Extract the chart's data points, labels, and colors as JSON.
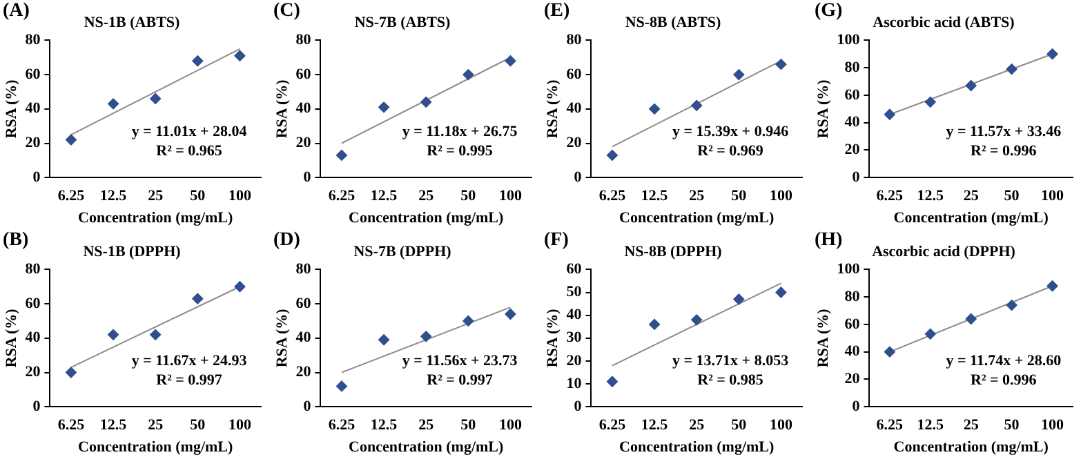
{
  "chart_data": [
    {
      "type": "scatter",
      "title": "NS-1B (ABTS)",
      "xlabel": "Concentration (mg/mL)",
      "ylabel": "RSA (%)",
      "categories": [
        "6.25",
        "12.5",
        "25",
        "50",
        "100"
      ],
      "ylim": [
        0,
        80
      ],
      "yticks": [
        0,
        20,
        40,
        60,
        80
      ],
      "annotations": [
        "(A)",
        "y = 11.01x + 28.04",
        "R² = 0.965"
      ],
      "series": [
        {
          "type": "scatter",
          "marker": "diamond",
          "color": "#2f4f8f",
          "values": [
            22,
            43,
            46,
            68,
            71
          ]
        },
        {
          "type": "line",
          "marker": "none",
          "color": "#8c8c8c",
          "x": [
            "6.25",
            "100"
          ],
          "values": [
            25,
            75
          ]
        }
      ]
    },
    {
      "type": "scatter",
      "title": "NS-7B (ABTS)",
      "xlabel": "Concentration (mg/mL)",
      "ylabel": "RSA (%)",
      "categories": [
        "6.25",
        "12.5",
        "25",
        "50",
        "100"
      ],
      "ylim": [
        0,
        80
      ],
      "yticks": [
        0,
        20,
        40,
        60,
        80
      ],
      "annotations": [
        "(C)",
        "y = 11.18x + 26.75",
        "R² = 0.995"
      ],
      "series": [
        {
          "type": "scatter",
          "marker": "diamond",
          "color": "#2f4f8f",
          "values": [
            13,
            41,
            44,
            60,
            68
          ]
        },
        {
          "type": "line",
          "marker": "none",
          "color": "#8c8c8c",
          "x": [
            "6.25",
            "100"
          ],
          "values": [
            20,
            70
          ]
        }
      ]
    },
    {
      "type": "scatter",
      "title": "NS-8B (ABTS)",
      "xlabel": "Concentration (mg/mL)",
      "ylabel": "RSA (%)",
      "categories": [
        "6.25",
        "12.5",
        "25",
        "50",
        "100"
      ],
      "ylim": [
        0,
        80
      ],
      "yticks": [
        0,
        20,
        40,
        60,
        80
      ],
      "annotations": [
        "(E)",
        "y = 15.39x + 0.946",
        "R² = 0.969"
      ],
      "series": [
        {
          "type": "scatter",
          "marker": "diamond",
          "color": "#2f4f8f",
          "values": [
            13,
            40,
            42,
            60,
            66
          ]
        },
        {
          "type": "line",
          "marker": "none",
          "color": "#8c8c8c",
          "x": [
            "6.25",
            "100"
          ],
          "values": [
            18,
            68
          ]
        }
      ]
    },
    {
      "type": "scatter",
      "title": "Ascorbic acid (ABTS)",
      "xlabel": "Concentration (mg/mL)",
      "ylabel": "RSA (%)",
      "categories": [
        "6.25",
        "12.5",
        "25",
        "50",
        "100"
      ],
      "ylim": [
        0,
        100
      ],
      "yticks": [
        0,
        20,
        40,
        60,
        80,
        100
      ],
      "annotations": [
        "(G)",
        "y = 11.57x + 33.46",
        "R² = 0.996"
      ],
      "series": [
        {
          "type": "scatter",
          "marker": "diamond",
          "color": "#2f4f8f",
          "values": [
            46,
            55,
            67,
            79,
            90
          ]
        },
        {
          "type": "line",
          "marker": "none",
          "color": "#8c8c8c",
          "x": [
            "6.25",
            "100"
          ],
          "values": [
            46,
            90
          ]
        }
      ]
    },
    {
      "type": "scatter",
      "title": "NS-1B (DPPH)",
      "xlabel": "Concentration (mg/mL)",
      "ylabel": "RSA (%)",
      "categories": [
        "6.25",
        "12.5",
        "25",
        "50",
        "100"
      ],
      "ylim": [
        0,
        80
      ],
      "yticks": [
        0,
        20,
        40,
        60,
        80
      ],
      "annotations": [
        "(B)",
        "y = 11.67x + 24.93",
        "R² = 0.997"
      ],
      "series": [
        {
          "type": "scatter",
          "marker": "diamond",
          "color": "#2f4f8f",
          "values": [
            20,
            42,
            42,
            63,
            70
          ]
        },
        {
          "type": "line",
          "marker": "none",
          "color": "#8c8c8c",
          "x": [
            "6.25",
            "100"
          ],
          "values": [
            23,
            70
          ]
        }
      ]
    },
    {
      "type": "scatter",
      "title": "NS-7B (DPPH)",
      "xlabel": "Concentration (mg/mL)",
      "ylabel": "RSA (%)",
      "categories": [
        "6.25",
        "12.5",
        "25",
        "50",
        "100"
      ],
      "ylim": [
        0,
        80
      ],
      "yticks": [
        0,
        20,
        40,
        60,
        80
      ],
      "annotations": [
        "(D)",
        "y = 11.56x + 23.73",
        "R² = 0.997"
      ],
      "series": [
        {
          "type": "scatter",
          "marker": "diamond",
          "color": "#2f4f8f",
          "values": [
            12,
            39,
            41,
            50,
            54
          ]
        },
        {
          "type": "line",
          "marker": "none",
          "color": "#8c8c8c",
          "x": [
            "6.25",
            "100"
          ],
          "values": [
            20,
            58
          ]
        }
      ]
    },
    {
      "type": "scatter",
      "title": "NS-8B (DPPH)",
      "xlabel": "Concentration (mg/mL)",
      "ylabel": "RSA (%)",
      "categories": [
        "6.25",
        "12.5",
        "25",
        "50",
        "100"
      ],
      "ylim": [
        0,
        60
      ],
      "yticks": [
        0,
        10,
        20,
        30,
        40,
        50,
        60
      ],
      "annotations": [
        "(F)",
        "y = 13.71x + 8.053",
        "R² = 0.985"
      ],
      "series": [
        {
          "type": "scatter",
          "marker": "diamond",
          "color": "#2f4f8f",
          "values": [
            11,
            36,
            38,
            47,
            50
          ]
        },
        {
          "type": "line",
          "marker": "none",
          "color": "#8c8c8c",
          "x": [
            "6.25",
            "100"
          ],
          "values": [
            18,
            54
          ]
        }
      ]
    },
    {
      "type": "scatter",
      "title": "Ascorbic acid (DPPH)",
      "xlabel": "Concentration (mg/mL)",
      "ylabel": "RSA (%)",
      "categories": [
        "6.25",
        "12.5",
        "25",
        "50",
        "100"
      ],
      "ylim": [
        0,
        100
      ],
      "yticks": [
        0,
        20,
        40,
        60,
        80,
        100
      ],
      "annotations": [
        "(H)",
        "y = 11.74x + 28.60",
        "R² = 0.996"
      ],
      "series": [
        {
          "type": "scatter",
          "marker": "diamond",
          "color": "#2f4f8f",
          "values": [
            40,
            53,
            64,
            74,
            88
          ]
        },
        {
          "type": "line",
          "marker": "none",
          "color": "#8c8c8c",
          "x": [
            "6.25",
            "100"
          ],
          "values": [
            40,
            88
          ]
        }
      ]
    }
  ]
}
